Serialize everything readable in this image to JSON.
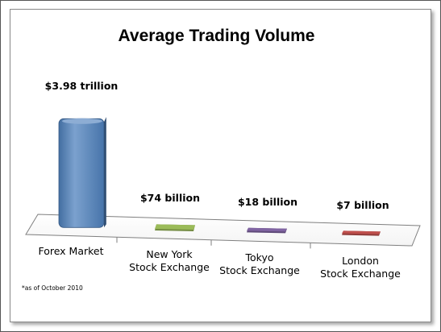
{
  "chart_data": {
    "type": "bar",
    "title": "Average Trading Volume",
    "categories": [
      [
        "Forex Market"
      ],
      [
        "New York",
        "Stock Exchange"
      ],
      [
        "Tokyo",
        "Stock Exchange"
      ],
      [
        "London",
        "Stock Exchange"
      ]
    ],
    "values": [
      3980,
      74,
      18,
      7
    ],
    "value_unit": "billion USD",
    "data_labels": [
      "$3.98 trillion",
      "$74 billion",
      "$18 billion",
      "$7 billion"
    ],
    "colors": [
      "#4F81BD",
      "#9BBB59",
      "#8064A2",
      "#C0504D"
    ],
    "xlabel": "",
    "ylabel": "",
    "grid": false,
    "legend": "none",
    "style": "3d"
  },
  "footnote": "*as of October 2010"
}
